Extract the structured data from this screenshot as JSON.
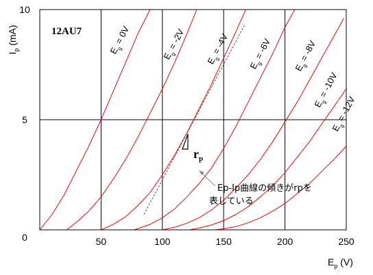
{
  "chart_data": {
    "type": "line",
    "title": "12AU7",
    "xlabel": {
      "main": "E",
      "sub": "p",
      "unit": " (V)"
    },
    "ylabel": {
      "main": "I",
      "sub": "p",
      "unit": " (mA)"
    },
    "xlim": [
      0,
      250
    ],
    "ylim": [
      0,
      10
    ],
    "x_ticks": [
      0,
      50,
      100,
      150,
      200,
      250
    ],
    "x_tick_labels": [
      "",
      "50",
      "100",
      "150",
      "200",
      "250"
    ],
    "y_ticks": [
      0,
      5,
      10
    ],
    "y_tick_labels": [
      "0",
      "5",
      "10"
    ],
    "origin_label": "0",
    "grid": true,
    "curve_color": "#ff0000",
    "tangent_color": "#555555",
    "series": [
      {
        "name": "Eg = 0V",
        "grid_voltage": "0V",
        "x": [
          0,
          10,
          20,
          30,
          40,
          50,
          60,
          70,
          80,
          90
        ],
        "y": [
          0,
          0.7,
          1.6,
          2.7,
          3.8,
          5.0,
          6.3,
          7.6,
          8.9,
          10.0
        ]
      },
      {
        "name": "Eg = -2V",
        "grid_voltage": "-2V",
        "x": [
          22,
          30,
          40,
          50,
          60,
          70,
          80,
          90,
          100,
          110,
          120,
          128
        ],
        "y": [
          0,
          0.35,
          0.85,
          1.5,
          2.3,
          3.2,
          4.2,
          5.3,
          6.4,
          7.6,
          8.9,
          10.0
        ]
      },
      {
        "name": "Eg = -4V",
        "grid_voltage": "-4V",
        "x": [
          50,
          60,
          70,
          80,
          90,
          100,
          110,
          120,
          130,
          140,
          150,
          160,
          168
        ],
        "y": [
          0,
          0.25,
          0.6,
          1.1,
          1.7,
          2.5,
          3.4,
          4.4,
          5.5,
          6.6,
          7.8,
          9.0,
          10.0
        ]
      },
      {
        "name": "Eg = -6V",
        "grid_voltage": "-6V",
        "x": [
          77,
          90,
          100,
          110,
          120,
          130,
          140,
          150,
          160,
          170,
          180,
          190,
          200,
          208
        ],
        "y": [
          0,
          0.25,
          0.55,
          0.95,
          1.5,
          2.1,
          2.8,
          3.7,
          4.7,
          5.8,
          6.9,
          8.0,
          9.2,
          10.0
        ]
      },
      {
        "name": "Eg = -8V",
        "grid_voltage": "-8V",
        "x": [
          100,
          110,
          120,
          130,
          140,
          150,
          160,
          170,
          180,
          190,
          200,
          210,
          220,
          230,
          240,
          248
        ],
        "y": [
          0,
          0.12,
          0.3,
          0.55,
          0.9,
          1.35,
          1.9,
          2.5,
          3.2,
          4.0,
          4.9,
          5.8,
          6.8,
          7.8,
          8.8,
          9.6
        ]
      },
      {
        "name": "Eg = -10V",
        "grid_voltage": "-10V",
        "x": [
          122,
          130,
          140,
          150,
          160,
          170,
          180,
          190,
          200,
          210,
          220,
          230,
          240,
          250
        ],
        "y": [
          0,
          0.08,
          0.22,
          0.42,
          0.7,
          1.05,
          1.5,
          2.0,
          2.6,
          3.3,
          4.0,
          4.8,
          5.6,
          6.4
        ]
      },
      {
        "name": "Eg = -12V",
        "grid_voltage": "-12V",
        "x": [
          143,
          150,
          160,
          170,
          180,
          190,
          200,
          210,
          220,
          230,
          240,
          250
        ],
        "y": [
          0,
          0.05,
          0.15,
          0.32,
          0.55,
          0.85,
          1.2,
          1.65,
          2.1,
          2.65,
          3.2,
          3.8
        ]
      }
    ],
    "tangent_line": {
      "x": [
        85,
        167
      ],
      "y": [
        0.7,
        9.3
      ]
    },
    "curve_label_parts": {
      "prefix": "E",
      "sub": "g",
      "middle": " = "
    },
    "annotations": {
      "rp_symbol": {
        "main": "r",
        "sub": "p"
      },
      "note_lines": [
        "Ep-Ip曲線の傾きがrpを",
        "表している"
      ]
    }
  }
}
